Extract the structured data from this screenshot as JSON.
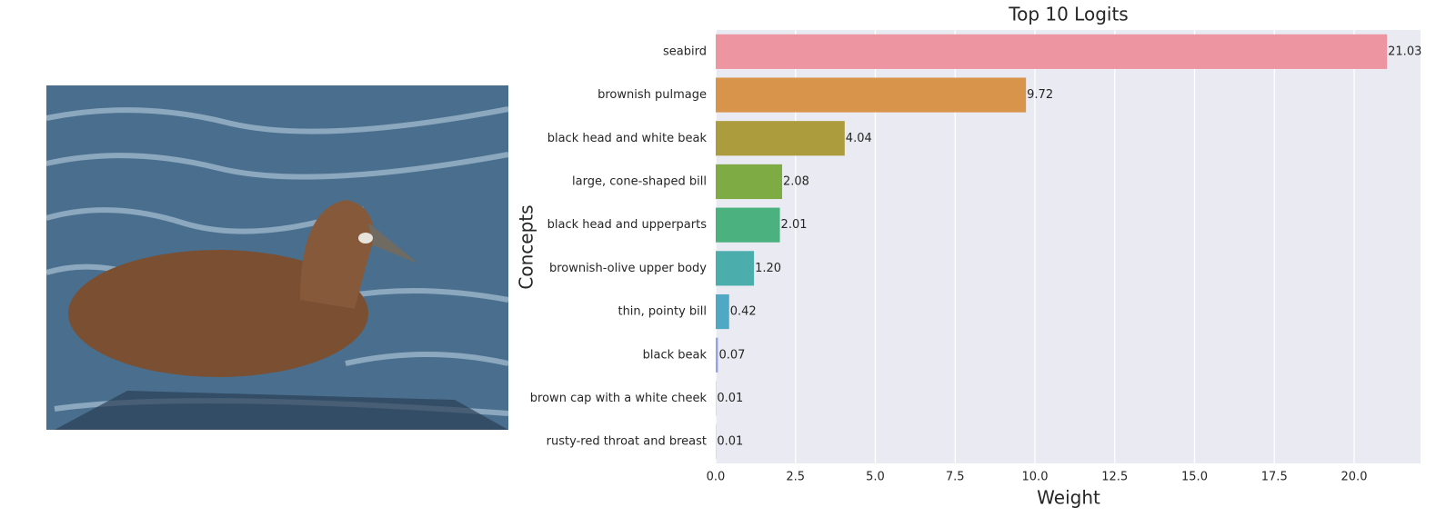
{
  "chart_data": {
    "type": "barh",
    "title": "Top 10 Logits",
    "xlabel": "Weight",
    "ylabel": "Concepts",
    "categories": [
      "seabird",
      "brownish pulmage",
      "black head and white beak",
      "large, cone-shaped bill",
      "black head and upperparts",
      "brownish-olive upper body",
      "thin, pointy bill",
      "black beak",
      "brown cap with a white cheek",
      "rusty-red throat and breast"
    ],
    "values": [
      21.03,
      9.72,
      4.04,
      2.08,
      2.01,
      1.2,
      0.42,
      0.07,
      0.01,
      0.01
    ],
    "value_labels": [
      "21.03",
      "9.72",
      "4.04",
      "2.08",
      "2.01",
      "1.20",
      "0.42",
      "0.07",
      "0.01",
      "0.01"
    ],
    "colors": [
      "#ee95a2",
      "#d9944c",
      "#ad9c3e",
      "#7eab43",
      "#4bb17f",
      "#4cadad",
      "#50a9c4",
      "#93a4e4",
      "#d097e4",
      "#ee90c6"
    ],
    "xlim": [
      0,
      22.08
    ],
    "xticks": [
      {
        "value": 0,
        "label": "0.0"
      },
      2.5,
      {
        "value": 5,
        "label": "5.0"
      },
      7.5,
      {
        "value": 10,
        "label": "10.0"
      },
      12.5,
      {
        "value": 15,
        "label": "15.0"
      },
      17.5,
      {
        "value": 20,
        "label": "20.0"
      }
    ],
    "grid": true
  }
}
